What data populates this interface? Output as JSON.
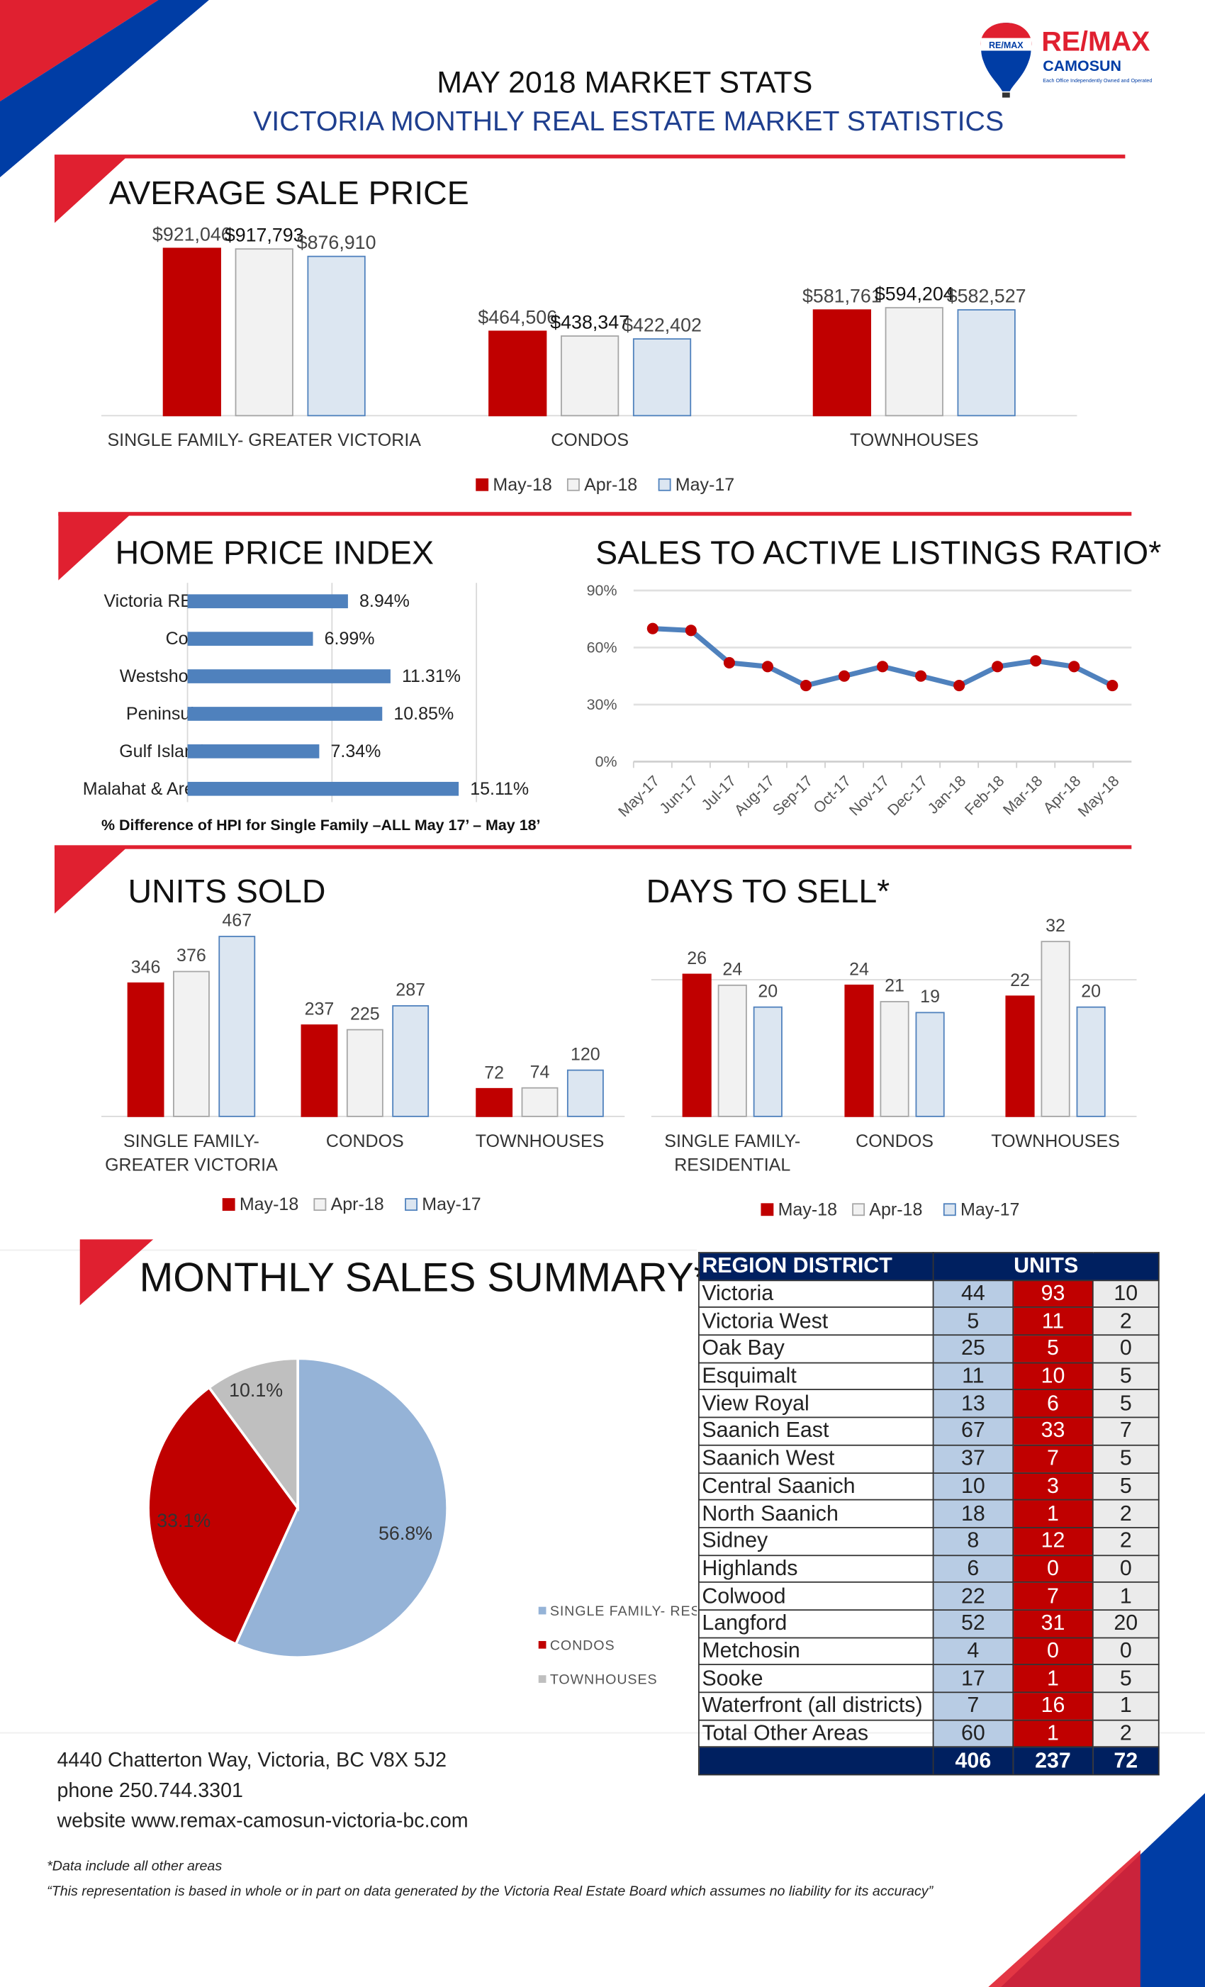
{
  "header": {
    "title": "MAY 2018 MARKET STATS",
    "subtitle": "VICTORIA MONTHLY REAL ESTATE MARKET STATISTICS",
    "logo": {
      "brand": "RE/MAX",
      "office": "CAMOSUN",
      "tagline": "Each Office Independently Owned and Operated"
    }
  },
  "colors": {
    "red": "#c00000",
    "apr": "#f2f2f2",
    "may17": "#dce6f1",
    "navy": "#002060",
    "line": "#4f81bd",
    "accent": "#e02030",
    "blue": "#1f3f8f"
  },
  "legend": [
    "May-18",
    "Apr-18",
    "May-17"
  ],
  "avg_price": {
    "title": "AVERAGE SALE PRICE",
    "chart_data": {
      "type": "bar",
      "categories": [
        "SINGLE FAMILY- GREATER VICTORIA",
        "CONDOS",
        "TOWNHOUSES"
      ],
      "series": [
        {
          "name": "May-18",
          "values": [
            921046,
            464506,
            581761
          ],
          "labels": [
            "$921,046",
            "$464,506",
            "$581,761"
          ]
        },
        {
          "name": "Apr-18",
          "values": [
            917793,
            438347,
            594204
          ],
          "labels": [
            "$917,793",
            "$438,347",
            "$594,204"
          ]
        },
        {
          "name": "May-17",
          "values": [
            876910,
            422402,
            582527
          ],
          "labels": [
            "$876,910",
            "$422,402",
            "$582,527"
          ]
        }
      ]
    }
  },
  "hpi": {
    "title": "HOME PRICE INDEX",
    "footnote": "% Difference of HPI for Single Family –ALL May 17’ – May 18’",
    "chart_data": {
      "type": "bar",
      "orientation": "horizontal",
      "categories": [
        "Victoria REB",
        "Core",
        "Westshore",
        "Peninsula",
        "Gulf Island",
        "Malahat & Area"
      ],
      "values": [
        8.94,
        6.99,
        11.31,
        10.85,
        7.34,
        15.11
      ],
      "labels": [
        "8.94%",
        "6.99%",
        "11.31%",
        "10.85%",
        "7.34%",
        "15.11%"
      ]
    }
  },
  "ratio": {
    "title": "SALES TO ACTIVE LISTINGS RATIO*",
    "chart_data": {
      "type": "line",
      "x": [
        "May-17",
        "Jun-17",
        "Jul-17",
        "Aug-17",
        "Sep-17",
        "Oct-17",
        "Nov-17",
        "Dec-17",
        "Jan-18",
        "Feb-18",
        "Mar-18",
        "Apr-18",
        "May-18"
      ],
      "y": [
        70,
        69,
        52,
        50,
        40,
        45,
        50,
        45,
        40,
        50,
        53,
        50,
        40
      ],
      "ylim": [
        0,
        90
      ],
      "yticks": [
        "0%",
        "30%",
        "60%",
        "90%"
      ],
      "grid": true
    }
  },
  "units_sold": {
    "title": "UNITS SOLD",
    "chart_data": {
      "type": "bar",
      "categories": [
        [
          "SINGLE FAMILY-",
          "GREATER VICTORIA"
        ],
        [
          "CONDOS",
          ""
        ],
        [
          "TOWNHOUSES",
          ""
        ]
      ],
      "series": [
        {
          "name": "May-18",
          "values": [
            346,
            237,
            72
          ]
        },
        {
          "name": "Apr-18",
          "values": [
            376,
            225,
            74
          ]
        },
        {
          "name": "May-17",
          "values": [
            467,
            287,
            120
          ]
        }
      ]
    }
  },
  "days": {
    "title": "DAYS TO SELL*",
    "chart_data": {
      "type": "bar",
      "categories": [
        [
          "SINGLE FAMILY-",
          "RESIDENTIAL"
        ],
        [
          "CONDOS",
          ""
        ],
        [
          "TOWNHOUSES",
          ""
        ]
      ],
      "series": [
        {
          "name": "May-18",
          "values": [
            26,
            24,
            22
          ]
        },
        {
          "name": "Apr-18",
          "values": [
            24,
            21,
            32
          ]
        },
        {
          "name": "May-17",
          "values": [
            20,
            19,
            20
          ]
        }
      ]
    }
  },
  "summary": {
    "title": "MONTHLY SALES SUMMARY*",
    "chart_data": {
      "type": "pie",
      "labels": [
        "SINGLE FAMILY- RES",
        "CONDOS",
        "TOWNHOUSES"
      ],
      "values": [
        56.8,
        33.1,
        10.1
      ],
      "value_labels": [
        "56.8%",
        "33.1%",
        "10.1%"
      ],
      "colors": [
        "#95b3d7",
        "#c00000",
        "#bfbfbf"
      ]
    }
  },
  "table": {
    "headers": [
      "REGION DISTRICT",
      "UNITS"
    ],
    "rows": [
      [
        "Victoria",
        "44",
        "93",
        "10"
      ],
      [
        "Victoria West",
        "5",
        "11",
        "2"
      ],
      [
        "Oak Bay",
        "25",
        "5",
        "0"
      ],
      [
        "Esquimalt",
        "11",
        "10",
        "5"
      ],
      [
        "View Royal",
        "13",
        "6",
        "5"
      ],
      [
        "Saanich East",
        "67",
        "33",
        "7"
      ],
      [
        "Saanich West",
        "37",
        "7",
        "5"
      ],
      [
        "Central Saanich",
        "10",
        "3",
        "5"
      ],
      [
        "North Saanich",
        "18",
        "1",
        "2"
      ],
      [
        "Sidney",
        "8",
        "12",
        "2"
      ],
      [
        "Highlands",
        "6",
        "0",
        "0"
      ],
      [
        "Colwood",
        "22",
        "7",
        "1"
      ],
      [
        "Langford",
        "52",
        "31",
        "20"
      ],
      [
        "Metchosin",
        "4",
        "0",
        "0"
      ],
      [
        "Sooke",
        "17",
        "1",
        "5"
      ],
      [
        "Waterfront (all districts)",
        "7",
        "16",
        "1"
      ],
      [
        "Total Other Areas",
        "60",
        "1",
        "2"
      ]
    ],
    "totals": [
      "",
      "406",
      "237",
      "72"
    ]
  },
  "footer": {
    "address": "4440 Chatterton Way, Victoria, BC V8X 5J2",
    "phone": "phone 250.744.3301",
    "website": "website www.remax-camosun-victoria-bc.com",
    "note1": "*Data include all other areas",
    "note2": "“This representation is based in whole or in part on data generated by the Victoria Real Estate Board which assumes no liability  for its accuracy”"
  }
}
